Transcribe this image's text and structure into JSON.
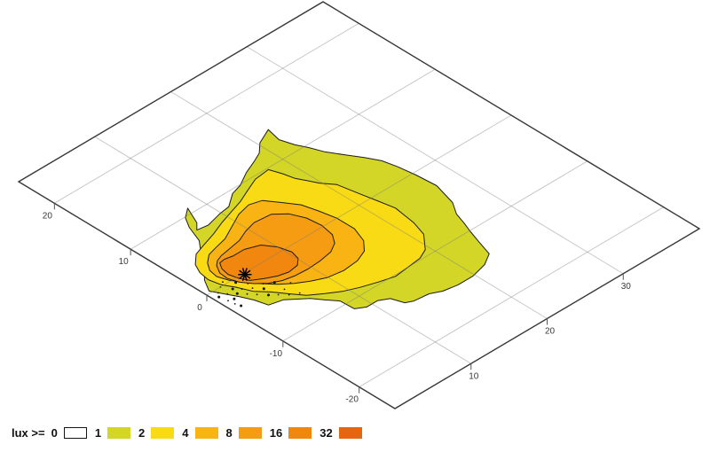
{
  "legend": {
    "title": "lux >=",
    "entries": [
      {
        "label": "0",
        "color": "#ffffff",
        "border": true
      },
      {
        "label": "1",
        "color": "#d3d626"
      },
      {
        "label": "2",
        "color": "#f8db15"
      },
      {
        "label": "4",
        "color": "#f9b413"
      },
      {
        "label": "8",
        "color": "#f59c12"
      },
      {
        "label": "16",
        "color": "#f1870e"
      },
      {
        "label": "32",
        "color": "#e4670f"
      }
    ]
  },
  "chart_data": {
    "type": "contour",
    "title": "",
    "view": "oblique plane (3D floor view)",
    "grid": true,
    "x_axis": {
      "range": [
        0,
        40
      ],
      "ticks": [
        10,
        20,
        30
      ]
    },
    "y_axis": {
      "range": [
        -24.7,
        24.7
      ],
      "ticks": [
        20,
        10,
        0,
        -10,
        -20
      ]
    },
    "source_marker": {
      "symbol": "asterisk",
      "x": 4.8,
      "y": -0.2
    },
    "contours": [
      {
        "level": 1,
        "color": "#d3d626",
        "points": [
          [
            0.6,
            0.3
          ],
          [
            1.5,
            1.8
          ],
          [
            2.6,
            2.9
          ],
          [
            3.6,
            4.4
          ],
          [
            4.5,
            5.3
          ],
          [
            5.5,
            6.5
          ],
          [
            6.3,
            8.6
          ],
          [
            7.1,
            9.9
          ],
          [
            8.3,
            10.8
          ],
          [
            7.3,
            8.6
          ],
          [
            6.5,
            7.8
          ],
          [
            7.8,
            7.6
          ],
          [
            9.8,
            8.1
          ],
          [
            11.2,
            8.3
          ],
          [
            12.9,
            9.5
          ],
          [
            14.3,
            9.9
          ],
          [
            16.1,
            10.9
          ],
          [
            17.8,
            11.6
          ],
          [
            19.1,
            12.2
          ],
          [
            20.3,
            13.3
          ],
          [
            22.3,
            14.2
          ],
          [
            21.9,
            12.4
          ],
          [
            22.4,
            10.8
          ],
          [
            23.0,
            9.6
          ],
          [
            23.6,
            8.1
          ],
          [
            24.7,
            6.3
          ],
          [
            25.6,
            4.9
          ],
          [
            26.4,
            3.4
          ],
          [
            26.8,
            1.7
          ],
          [
            27.1,
            -0.4
          ],
          [
            27.3,
            -2.9
          ],
          [
            26.5,
            -5.8
          ],
          [
            25.5,
            -7.3
          ],
          [
            25.0,
            -8.8
          ],
          [
            24.5,
            -10.1
          ],
          [
            23.9,
            -11.9
          ],
          [
            23.3,
            -13.8
          ],
          [
            21.8,
            -14.7
          ],
          [
            19.8,
            -15.2
          ],
          [
            17.8,
            -15.2
          ],
          [
            16.1,
            -14.9
          ],
          [
            14.9,
            -14.3
          ],
          [
            13.1,
            -14.1
          ],
          [
            12.3,
            -13.7
          ],
          [
            11.8,
            -12.3
          ],
          [
            10.7,
            -11.7
          ],
          [
            9.3,
            -11.7
          ],
          [
            8.3,
            -11.1
          ],
          [
            8.2,
            -9.3
          ],
          [
            7.3,
            -8.2
          ],
          [
            6.5,
            -7.1
          ],
          [
            4.6,
            -5.5
          ],
          [
            3.0,
            -5.1
          ],
          [
            2.6,
            -3.6
          ],
          [
            2.0,
            -2.3
          ],
          [
            1.3,
            -1.0
          ]
        ]
      },
      {
        "level": 2,
        "color": "#f8db15",
        "points": [
          [
            1.8,
            1.6
          ],
          [
            2.0,
            2.9
          ],
          [
            2.6,
            4.1
          ],
          [
            3.8,
            5.2
          ],
          [
            5.0,
            5.6
          ],
          [
            7.2,
            6.3
          ],
          [
            9.0,
            7.0
          ],
          [
            10.9,
            7.6
          ],
          [
            12.5,
            8.1
          ],
          [
            14.1,
            8.8
          ],
          [
            16.0,
            9.6
          ],
          [
            17.9,
            9.8
          ],
          [
            18.4,
            8.4
          ],
          [
            18.7,
            7.1
          ],
          [
            19.3,
            6.0
          ],
          [
            19.8,
            5.0
          ],
          [
            20.8,
            3.7
          ],
          [
            21.3,
            1.2
          ],
          [
            21.7,
            -0.7
          ],
          [
            22.1,
            -2.7
          ],
          [
            21.9,
            -4.1
          ],
          [
            21.7,
            -5.5
          ],
          [
            21.1,
            -7.4
          ],
          [
            19.5,
            -9.2
          ],
          [
            18.2,
            -9.8
          ],
          [
            16.4,
            -10.0
          ],
          [
            14.6,
            -10.2
          ],
          [
            12.8,
            -9.7
          ],
          [
            11.0,
            -9.1
          ],
          [
            9.4,
            -8.4
          ],
          [
            8.0,
            -7.5
          ],
          [
            6.6,
            -6.5
          ],
          [
            5.6,
            -5.2
          ],
          [
            4.6,
            -3.8
          ],
          [
            3.5,
            -2.6
          ],
          [
            2.8,
            -1.0
          ],
          [
            2.1,
            0.2
          ]
        ]
      },
      {
        "level": 4,
        "color": "#f9b413",
        "points": [
          [
            2.7,
            1.4
          ],
          [
            2.9,
            2.5
          ],
          [
            3.6,
            3.5
          ],
          [
            4.6,
            4.3
          ],
          [
            5.7,
            4.6
          ],
          [
            7.4,
            5.0
          ],
          [
            9.4,
            6.0
          ],
          [
            11.0,
            6.8
          ],
          [
            12.7,
            7.2
          ],
          [
            14.1,
            6.8
          ],
          [
            15.1,
            5.4
          ],
          [
            16.2,
            3.8
          ],
          [
            16.7,
            1.9
          ],
          [
            17.1,
            0.0
          ],
          [
            17.1,
            -2.3
          ],
          [
            16.4,
            -4.2
          ],
          [
            15.3,
            -5.4
          ],
          [
            13.8,
            -6.0
          ],
          [
            11.8,
            -6.2
          ],
          [
            9.9,
            -5.9
          ],
          [
            8.4,
            -5.2
          ],
          [
            7.1,
            -4.4
          ],
          [
            5.9,
            -3.4
          ],
          [
            4.8,
            -2.2
          ],
          [
            3.9,
            -1.0
          ],
          [
            3.1,
            0.2
          ]
        ]
      },
      {
        "level": 8,
        "color": "#f59c12",
        "points": [
          [
            3.3,
            1.6
          ],
          [
            3.9,
            2.6
          ],
          [
            4.5,
            3.1
          ],
          [
            5.3,
            3.4
          ],
          [
            6.5,
            3.6
          ],
          [
            8.2,
            3.9
          ],
          [
            9.6,
            4.5
          ],
          [
            11.1,
            4.9
          ],
          [
            13.2,
            4.7
          ],
          [
            14.4,
            3.6
          ],
          [
            15.1,
            2.0
          ],
          [
            15.3,
            0.2
          ],
          [
            15.0,
            -1.5
          ],
          [
            14.2,
            -2.6
          ],
          [
            13.0,
            -3.3
          ],
          [
            11.3,
            -3.6
          ],
          [
            9.6,
            -3.7
          ],
          [
            8.0,
            -3.6
          ],
          [
            6.6,
            -3.3
          ],
          [
            5.4,
            -2.7
          ],
          [
            4.4,
            -1.8
          ],
          [
            3.6,
            -0.7
          ],
          [
            3.2,
            0.5
          ]
        ]
      },
      {
        "level": 16,
        "color": "#f1870e",
        "points": [
          [
            3.9,
            1.9
          ],
          [
            4.4,
            2.7
          ],
          [
            5.1,
            2.8
          ],
          [
            6.1,
            2.6
          ],
          [
            7.5,
            2.6
          ],
          [
            9.1,
            2.0
          ],
          [
            10.0,
            0.7
          ],
          [
            10.4,
            -0.8
          ],
          [
            10.1,
            -1.9
          ],
          [
            9.3,
            -2.6
          ],
          [
            8.0,
            -2.8
          ],
          [
            6.8,
            -2.5
          ],
          [
            5.6,
            -1.9
          ],
          [
            4.5,
            -1.2
          ],
          [
            4.0,
            -0.3
          ],
          [
            3.7,
            0.9
          ]
        ]
      }
    ],
    "noise_specks": [
      [
        0.6,
        -1.0
      ],
      [
        0.8,
        -2.0
      ],
      [
        0.9,
        -2.8
      ],
      [
        1.1,
        -3.4
      ],
      [
        1.0,
        -0.5
      ],
      [
        1.5,
        -1.2
      ],
      [
        2.2,
        -1.8
      ],
      [
        2.8,
        -2.5
      ],
      [
        3.4,
        -3.2
      ],
      [
        4.1,
        -4.0
      ],
      [
        4.8,
        -4.6
      ],
      [
        5.5,
        -5.3
      ],
      [
        2.4,
        -1.0
      ],
      [
        3.0,
        -1.6
      ],
      [
        3.8,
        -2.2
      ],
      [
        4.5,
        -3.0
      ],
      [
        1.8,
        0.0
      ],
      [
        2.5,
        0.4
      ],
      [
        1.4,
        -2.2
      ],
      [
        5.8,
        -4.4
      ],
      [
        6.4,
        -5.8
      ],
      [
        3.3,
        -0.5
      ],
      [
        4.0,
        -1.4
      ],
      [
        5.0,
        -2.4
      ],
      [
        5.9,
        -3.0
      ],
      [
        6.9,
        -4.1
      ]
    ]
  }
}
